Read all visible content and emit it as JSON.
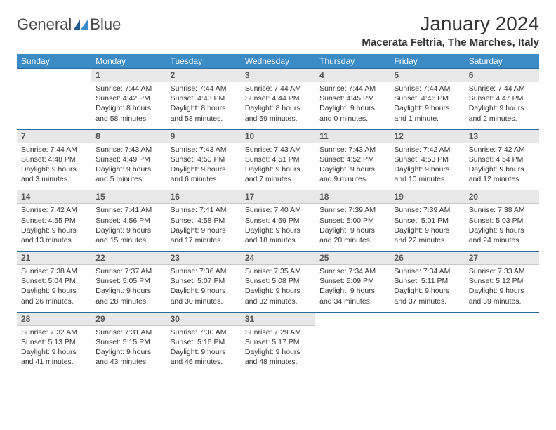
{
  "logo": {
    "word1": "General",
    "word2": "Blue"
  },
  "title": "January 2024",
  "location": "Macerata Feltria, The Marches, Italy",
  "colors": {
    "header_bg": "#3b8bc6",
    "header_text": "#ffffff",
    "daynum_bg": "#e8e8e8",
    "rule": "#2a6a9e",
    "text": "#333333"
  },
  "day_headers": [
    "Sunday",
    "Monday",
    "Tuesday",
    "Wednesday",
    "Thursday",
    "Friday",
    "Saturday"
  ],
  "weeks": [
    {
      "nums": [
        "",
        "1",
        "2",
        "3",
        "4",
        "5",
        "6"
      ],
      "cells": [
        null,
        {
          "sunrise": "Sunrise: 7:44 AM",
          "sunset": "Sunset: 4:42 PM",
          "day1": "Daylight: 8 hours",
          "day2": "and 58 minutes."
        },
        {
          "sunrise": "Sunrise: 7:44 AM",
          "sunset": "Sunset: 4:43 PM",
          "day1": "Daylight: 8 hours",
          "day2": "and 58 minutes."
        },
        {
          "sunrise": "Sunrise: 7:44 AM",
          "sunset": "Sunset: 4:44 PM",
          "day1": "Daylight: 8 hours",
          "day2": "and 59 minutes."
        },
        {
          "sunrise": "Sunrise: 7:44 AM",
          "sunset": "Sunset: 4:45 PM",
          "day1": "Daylight: 9 hours",
          "day2": "and 0 minutes."
        },
        {
          "sunrise": "Sunrise: 7:44 AM",
          "sunset": "Sunset: 4:46 PM",
          "day1": "Daylight: 9 hours",
          "day2": "and 1 minute."
        },
        {
          "sunrise": "Sunrise: 7:44 AM",
          "sunset": "Sunset: 4:47 PM",
          "day1": "Daylight: 9 hours",
          "day2": "and 2 minutes."
        }
      ]
    },
    {
      "nums": [
        "7",
        "8",
        "9",
        "10",
        "11",
        "12",
        "13"
      ],
      "cells": [
        {
          "sunrise": "Sunrise: 7:44 AM",
          "sunset": "Sunset: 4:48 PM",
          "day1": "Daylight: 9 hours",
          "day2": "and 3 minutes."
        },
        {
          "sunrise": "Sunrise: 7:43 AM",
          "sunset": "Sunset: 4:49 PM",
          "day1": "Daylight: 9 hours",
          "day2": "and 5 minutes."
        },
        {
          "sunrise": "Sunrise: 7:43 AM",
          "sunset": "Sunset: 4:50 PM",
          "day1": "Daylight: 9 hours",
          "day2": "and 6 minutes."
        },
        {
          "sunrise": "Sunrise: 7:43 AM",
          "sunset": "Sunset: 4:51 PM",
          "day1": "Daylight: 9 hours",
          "day2": "and 7 minutes."
        },
        {
          "sunrise": "Sunrise: 7:43 AM",
          "sunset": "Sunset: 4:52 PM",
          "day1": "Daylight: 9 hours",
          "day2": "and 9 minutes."
        },
        {
          "sunrise": "Sunrise: 7:42 AM",
          "sunset": "Sunset: 4:53 PM",
          "day1": "Daylight: 9 hours",
          "day2": "and 10 minutes."
        },
        {
          "sunrise": "Sunrise: 7:42 AM",
          "sunset": "Sunset: 4:54 PM",
          "day1": "Daylight: 9 hours",
          "day2": "and 12 minutes."
        }
      ]
    },
    {
      "nums": [
        "14",
        "15",
        "16",
        "17",
        "18",
        "19",
        "20"
      ],
      "cells": [
        {
          "sunrise": "Sunrise: 7:42 AM",
          "sunset": "Sunset: 4:55 PM",
          "day1": "Daylight: 9 hours",
          "day2": "and 13 minutes."
        },
        {
          "sunrise": "Sunrise: 7:41 AM",
          "sunset": "Sunset: 4:56 PM",
          "day1": "Daylight: 9 hours",
          "day2": "and 15 minutes."
        },
        {
          "sunrise": "Sunrise: 7:41 AM",
          "sunset": "Sunset: 4:58 PM",
          "day1": "Daylight: 9 hours",
          "day2": "and 17 minutes."
        },
        {
          "sunrise": "Sunrise: 7:40 AM",
          "sunset": "Sunset: 4:59 PM",
          "day1": "Daylight: 9 hours",
          "day2": "and 18 minutes."
        },
        {
          "sunrise": "Sunrise: 7:39 AM",
          "sunset": "Sunset: 5:00 PM",
          "day1": "Daylight: 9 hours",
          "day2": "and 20 minutes."
        },
        {
          "sunrise": "Sunrise: 7:39 AM",
          "sunset": "Sunset: 5:01 PM",
          "day1": "Daylight: 9 hours",
          "day2": "and 22 minutes."
        },
        {
          "sunrise": "Sunrise: 7:38 AM",
          "sunset": "Sunset: 5:03 PM",
          "day1": "Daylight: 9 hours",
          "day2": "and 24 minutes."
        }
      ]
    },
    {
      "nums": [
        "21",
        "22",
        "23",
        "24",
        "25",
        "26",
        "27"
      ],
      "cells": [
        {
          "sunrise": "Sunrise: 7:38 AM",
          "sunset": "Sunset: 5:04 PM",
          "day1": "Daylight: 9 hours",
          "day2": "and 26 minutes."
        },
        {
          "sunrise": "Sunrise: 7:37 AM",
          "sunset": "Sunset: 5:05 PM",
          "day1": "Daylight: 9 hours",
          "day2": "and 28 minutes."
        },
        {
          "sunrise": "Sunrise: 7:36 AM",
          "sunset": "Sunset: 5:07 PM",
          "day1": "Daylight: 9 hours",
          "day2": "and 30 minutes."
        },
        {
          "sunrise": "Sunrise: 7:35 AM",
          "sunset": "Sunset: 5:08 PM",
          "day1": "Daylight: 9 hours",
          "day2": "and 32 minutes."
        },
        {
          "sunrise": "Sunrise: 7:34 AM",
          "sunset": "Sunset: 5:09 PM",
          "day1": "Daylight: 9 hours",
          "day2": "and 34 minutes."
        },
        {
          "sunrise": "Sunrise: 7:34 AM",
          "sunset": "Sunset: 5:11 PM",
          "day1": "Daylight: 9 hours",
          "day2": "and 37 minutes."
        },
        {
          "sunrise": "Sunrise: 7:33 AM",
          "sunset": "Sunset: 5:12 PM",
          "day1": "Daylight: 9 hours",
          "day2": "and 39 minutes."
        }
      ]
    },
    {
      "nums": [
        "28",
        "29",
        "30",
        "31",
        "",
        "",
        ""
      ],
      "cells": [
        {
          "sunrise": "Sunrise: 7:32 AM",
          "sunset": "Sunset: 5:13 PM",
          "day1": "Daylight: 9 hours",
          "day2": "and 41 minutes."
        },
        {
          "sunrise": "Sunrise: 7:31 AM",
          "sunset": "Sunset: 5:15 PM",
          "day1": "Daylight: 9 hours",
          "day2": "and 43 minutes."
        },
        {
          "sunrise": "Sunrise: 7:30 AM",
          "sunset": "Sunset: 5:16 PM",
          "day1": "Daylight: 9 hours",
          "day2": "and 46 minutes."
        },
        {
          "sunrise": "Sunrise: 7:29 AM",
          "sunset": "Sunset: 5:17 PM",
          "day1": "Daylight: 9 hours",
          "day2": "and 48 minutes."
        },
        null,
        null,
        null
      ]
    }
  ]
}
